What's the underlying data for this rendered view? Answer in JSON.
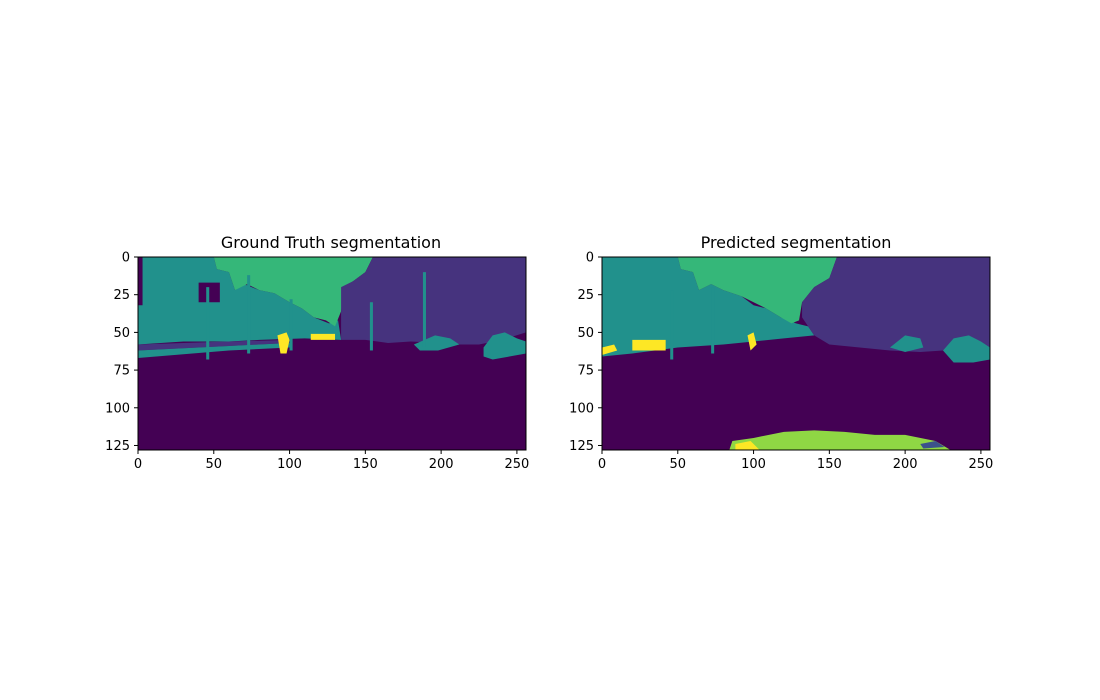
{
  "palette": {
    "purple": "#440154",
    "indigo": "#46337e",
    "teal": "#21918c",
    "green": "#35b779",
    "lime": "#8fd744",
    "yellow": "#fde725",
    "blue": "#3b528b"
  },
  "chart_data": [
    {
      "type": "heatmap",
      "title": "Ground Truth segmentation",
      "xlim": [
        0,
        256
      ],
      "ylim": [
        128,
        0
      ],
      "x_ticks": [
        "0",
        "50",
        "100",
        "150",
        "200",
        "250"
      ],
      "y_ticks": [
        "0",
        "25",
        "50",
        "75",
        "100",
        "125"
      ],
      "regions": [
        {
          "label": "background",
          "color": "purple",
          "points": [
            [
              0,
              0
            ],
            [
              256,
              0
            ],
            [
              256,
              128
            ],
            [
              0,
              128
            ]
          ]
        },
        {
          "label": "vegetation-left",
          "color": "teal",
          "points": [
            [
              0,
              0
            ],
            [
              50,
              0
            ],
            [
              52,
              8
            ],
            [
              60,
              10
            ],
            [
              64,
              22
            ],
            [
              70,
              18
            ],
            [
              80,
              22
            ],
            [
              90,
              24
            ],
            [
              100,
              30
            ],
            [
              108,
              34
            ],
            [
              116,
              40
            ],
            [
              126,
              44
            ],
            [
              132,
              42
            ],
            [
              134,
              55
            ],
            [
              110,
              54
            ],
            [
              80,
              55
            ],
            [
              60,
              56
            ],
            [
              30,
              56
            ],
            [
              0,
              58
            ]
          ]
        },
        {
          "label": "sky",
          "color": "green",
          "points": [
            [
              50,
              0
            ],
            [
              155,
              0
            ],
            [
              150,
              10
            ],
            [
              142,
              16
            ],
            [
              136,
              20
            ],
            [
              134,
              36
            ],
            [
              130,
              46
            ],
            [
              124,
              42
            ],
            [
              116,
              40
            ],
            [
              108,
              34
            ],
            [
              100,
              30
            ],
            [
              90,
              24
            ],
            [
              80,
              22
            ],
            [
              72,
              18
            ],
            [
              64,
              22
            ],
            [
              60,
              10
            ],
            [
              52,
              8
            ]
          ]
        },
        {
          "label": "building-right",
          "color": "indigo",
          "points": [
            [
              155,
              0
            ],
            [
              256,
              0
            ],
            [
              256,
              50
            ],
            [
              240,
              55
            ],
            [
              225,
              58
            ],
            [
              210,
              58
            ],
            [
              200,
              57
            ],
            [
              180,
              56
            ],
            [
              165,
              57
            ],
            [
              150,
              55
            ],
            [
              134,
              55
            ],
            [
              134,
              20
            ],
            [
              142,
              16
            ],
            [
              150,
              10
            ]
          ]
        },
        {
          "label": "road-edge-strip",
          "color": "indigo",
          "points": [
            [
              0,
              58
            ],
            [
              60,
              56
            ],
            [
              100,
              55
            ],
            [
              100,
              57
            ],
            [
              60,
              59
            ],
            [
              0,
              62
            ]
          ]
        },
        {
          "label": "hedge-left",
          "color": "teal",
          "points": [
            [
              0,
              62
            ],
            [
              60,
              59
            ],
            [
              100,
              57
            ],
            [
              100,
              60
            ],
            [
              60,
              62
            ],
            [
              0,
              67
            ]
          ]
        },
        {
          "label": "bush-right",
          "color": "teal",
          "points": [
            [
              228,
              60
            ],
            [
              234,
              52
            ],
            [
              242,
              50
            ],
            [
              250,
              54
            ],
            [
              256,
              56
            ],
            [
              256,
              64
            ],
            [
              245,
              66
            ],
            [
              234,
              68
            ],
            [
              228,
              66
            ]
          ]
        },
        {
          "label": "bush-mid",
          "color": "teal",
          "points": [
            [
              182,
              58
            ],
            [
              196,
              52
            ],
            [
              206,
              54
            ],
            [
              212,
              58
            ],
            [
              198,
              62
            ],
            [
              186,
              62
            ]
          ]
        },
        {
          "label": "sign-left",
          "color": "purple",
          "points": [
            [
              40,
              17
            ],
            [
              54,
              17
            ],
            [
              54,
              30
            ],
            [
              40,
              30
            ]
          ]
        },
        {
          "label": "car-yellow-1",
          "color": "yellow",
          "points": [
            [
              92,
              52
            ],
            [
              98,
              50
            ],
            [
              100,
              55
            ],
            [
              98,
              64
            ],
            [
              94,
              64
            ]
          ]
        },
        {
          "label": "car-yellow-2",
          "color": "yellow",
          "points": [
            [
              114,
              51
            ],
            [
              130,
              51
            ],
            [
              130,
              55
            ],
            [
              114,
              55
            ]
          ]
        },
        {
          "label": "pole-1",
          "color": "teal",
          "points": [
            [
              45,
              20
            ],
            [
              47,
              20
            ],
            [
              47,
              68
            ],
            [
              45,
              68
            ]
          ]
        },
        {
          "label": "pole-2",
          "color": "teal",
          "points": [
            [
              72,
              12
            ],
            [
              74,
              12
            ],
            [
              74,
              64
            ],
            [
              72,
              64
            ]
          ]
        },
        {
          "label": "pole-3",
          "color": "teal",
          "points": [
            [
              100,
              28
            ],
            [
              102,
              28
            ],
            [
              102,
              62
            ],
            [
              100,
              62
            ]
          ]
        },
        {
          "label": "pole-4",
          "color": "teal",
          "points": [
            [
              153,
              30
            ],
            [
              155,
              30
            ],
            [
              155,
              62
            ],
            [
              153,
              62
            ]
          ]
        },
        {
          "label": "pole-5",
          "color": "teal",
          "points": [
            [
              188,
              10
            ],
            [
              190,
              10
            ],
            [
              190,
              60
            ],
            [
              188,
              60
            ]
          ]
        },
        {
          "label": "top-edge-strip",
          "color": "purple",
          "points": [
            [
              0,
              0
            ],
            [
              3,
              0
            ],
            [
              3,
              32
            ],
            [
              0,
              32
            ]
          ]
        }
      ]
    },
    {
      "type": "heatmap",
      "title": "Predicted segmentation",
      "xlim": [
        0,
        256
      ],
      "ylim": [
        128,
        0
      ],
      "x_ticks": [
        "0",
        "50",
        "100",
        "150",
        "200",
        "250"
      ],
      "y_ticks": [
        "0",
        "25",
        "50",
        "75",
        "100",
        "125"
      ],
      "regions": [
        {
          "label": "background",
          "color": "purple",
          "points": [
            [
              0,
              0
            ],
            [
              256,
              0
            ],
            [
              256,
              128
            ],
            [
              0,
              128
            ]
          ]
        },
        {
          "label": "vegetation-left",
          "color": "teal",
          "points": [
            [
              0,
              0
            ],
            [
              50,
              0
            ],
            [
              52,
              8
            ],
            [
              60,
              10
            ],
            [
              64,
              22
            ],
            [
              72,
              18
            ],
            [
              80,
              22
            ],
            [
              92,
              26
            ],
            [
              100,
              32
            ],
            [
              108,
              34
            ],
            [
              118,
              40
            ],
            [
              128,
              44
            ],
            [
              136,
              46
            ],
            [
              140,
              52
            ],
            [
              120,
              54
            ],
            [
              100,
              56
            ],
            [
              80,
              58
            ],
            [
              50,
              60
            ],
            [
              20,
              64
            ],
            [
              0,
              66
            ]
          ]
        },
        {
          "label": "sky",
          "color": "green",
          "points": [
            [
              50,
              0
            ],
            [
              155,
              0
            ],
            [
              150,
              14
            ],
            [
              140,
              20
            ],
            [
              132,
              30
            ],
            [
              130,
              42
            ],
            [
              125,
              44
            ],
            [
              118,
              40
            ],
            [
              108,
              34
            ],
            [
              100,
              30
            ],
            [
              92,
              26
            ],
            [
              80,
              22
            ],
            [
              72,
              18
            ],
            [
              64,
              22
            ],
            [
              60,
              10
            ],
            [
              52,
              8
            ]
          ]
        },
        {
          "label": "building-right",
          "color": "indigo",
          "points": [
            [
              155,
              0
            ],
            [
              256,
              0
            ],
            [
              256,
              68
            ],
            [
              240,
              66
            ],
            [
              225,
              62
            ],
            [
              210,
              63
            ],
            [
              190,
              62
            ],
            [
              170,
              60
            ],
            [
              150,
              58
            ],
            [
              140,
              52
            ],
            [
              136,
              46
            ],
            [
              132,
              40
            ],
            [
              132,
              30
            ],
            [
              140,
              20
            ],
            [
              150,
              14
            ]
          ]
        },
        {
          "label": "bush-right",
          "color": "teal",
          "points": [
            [
              225,
              62
            ],
            [
              232,
              54
            ],
            [
              242,
              52
            ],
            [
              250,
              56
            ],
            [
              256,
              60
            ],
            [
              256,
              68
            ],
            [
              245,
              70
            ],
            [
              232,
              70
            ]
          ]
        },
        {
          "label": "bush-mid",
          "color": "teal",
          "points": [
            [
              190,
              60
            ],
            [
              200,
              52
            ],
            [
              210,
              54
            ],
            [
              212,
              60
            ],
            [
              200,
              63
            ]
          ]
        },
        {
          "label": "car-yellow-left",
          "color": "yellow",
          "points": [
            [
              20,
              55
            ],
            [
              42,
              55
            ],
            [
              42,
              62
            ],
            [
              20,
              62
            ]
          ]
        },
        {
          "label": "car-yellow-edge",
          "color": "yellow",
          "points": [
            [
              0,
              60
            ],
            [
              8,
              58
            ],
            [
              10,
              62
            ],
            [
              0,
              65
            ]
          ]
        },
        {
          "label": "car-yellow-3",
          "color": "yellow",
          "points": [
            [
              96,
              52
            ],
            [
              100,
              50
            ],
            [
              102,
              58
            ],
            [
              98,
              62
            ]
          ]
        },
        {
          "label": "hood-lime",
          "color": "lime",
          "points": [
            [
              86,
              122
            ],
            [
              100,
              120
            ],
            [
              120,
              116
            ],
            [
              140,
              115
            ],
            [
              160,
              116
            ],
            [
              180,
              118
            ],
            [
              200,
              118
            ],
            [
              220,
              122
            ],
            [
              230,
              128
            ],
            [
              84,
              128
            ]
          ]
        },
        {
          "label": "hood-yellow",
          "color": "yellow",
          "points": [
            [
              88,
              124
            ],
            [
              98,
              122
            ],
            [
              104,
              128
            ],
            [
              88,
              128
            ]
          ]
        },
        {
          "label": "hood-blue",
          "color": "blue",
          "points": [
            [
              210,
              124
            ],
            [
              220,
              122
            ],
            [
              226,
              126
            ],
            [
              212,
              127
            ]
          ]
        },
        {
          "label": "pole-1",
          "color": "teal",
          "points": [
            [
              45,
              22
            ],
            [
              47,
              22
            ],
            [
              47,
              68
            ],
            [
              45,
              68
            ]
          ]
        },
        {
          "label": "pole-2",
          "color": "teal",
          "points": [
            [
              72,
              20
            ],
            [
              74,
              20
            ],
            [
              74,
              64
            ],
            [
              72,
              64
            ]
          ]
        }
      ]
    }
  ]
}
